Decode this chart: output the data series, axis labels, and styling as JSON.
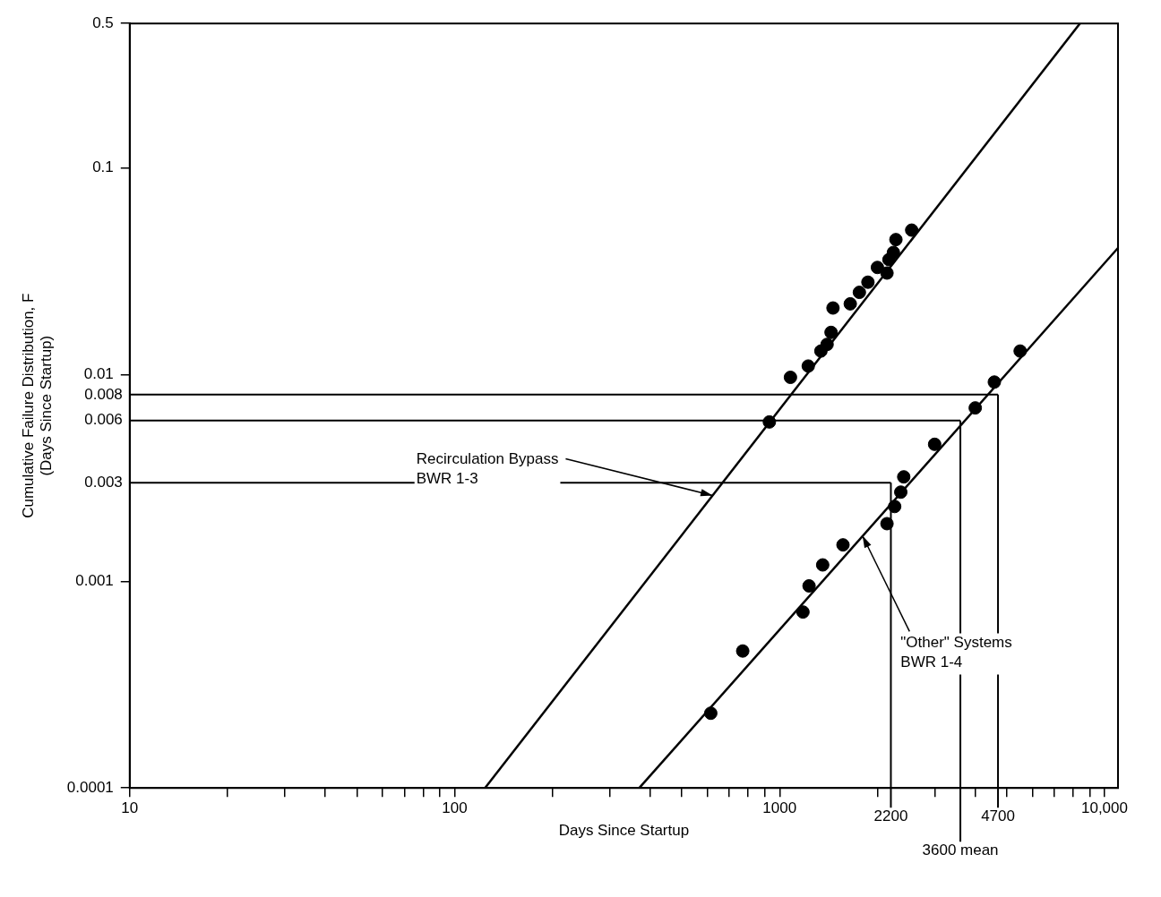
{
  "chart_data": {
    "type": "scatter",
    "xlabel": "Days Since Startup",
    "ylabel": "Cumulative Failure Distribution, F\n(Days Since Startup)",
    "log": "xy",
    "grid": false,
    "legend": false,
    "marker": "circle",
    "xlim": [
      10,
      11000
    ],
    "ylim": [
      0.0001,
      0.5
    ],
    "xticks": [
      10,
      {
        "value": 20,
        "label": null
      },
      {
        "value": 30,
        "label": null
      },
      {
        "value": 40,
        "label": null
      },
      {
        "value": 50,
        "label": null
      },
      {
        "value": 60,
        "label": null
      },
      {
        "value": 70,
        "label": null
      },
      {
        "value": 80,
        "label": null
      },
      {
        "value": 90,
        "label": null
      },
      100,
      {
        "value": 200,
        "label": null
      },
      {
        "value": 300,
        "label": null
      },
      {
        "value": 400,
        "label": null
      },
      {
        "value": 500,
        "label": null
      },
      {
        "value": 600,
        "label": null
      },
      {
        "value": 700,
        "label": null
      },
      {
        "value": 800,
        "label": null
      },
      {
        "value": 900,
        "label": null
      },
      1000,
      {
        "value": 2000,
        "label": null
      },
      {
        "value": 3000,
        "label": null
      },
      {
        "value": 4000,
        "label": null
      },
      {
        "value": 5000,
        "label": null
      },
      {
        "value": 6000,
        "label": null
      },
      {
        "value": 7000,
        "label": null
      },
      {
        "value": 8000,
        "label": null
      },
      {
        "value": 9000,
        "label": null
      },
      {
        "value": 10000,
        "label": "10,000"
      }
    ],
    "yticks": [
      0.0001,
      0.001,
      0.01,
      0.1,
      0.5
    ],
    "series": [
      {
        "color": "#000000",
        "x": [
          930,
          1080,
          1225,
          1340,
          1400,
          1440,
          1460,
          1650,
          1760,
          1870,
          2000,
          2140,
          2170,
          2240,
          2280,
          2550
        ],
        "values": [
          0.0059,
          0.0097,
          0.011,
          0.013,
          0.014,
          0.016,
          0.021,
          0.022,
          0.025,
          0.028,
          0.033,
          0.031,
          0.036,
          0.039,
          0.045,
          0.05
        ]
      },
      {
        "color": "#000000",
        "x": [
          614,
          770,
          1180,
          1232,
          1357,
          1567,
          2140,
          2260,
          2360,
          2410,
          3000,
          4000,
          4580,
          5500
        ],
        "values": [
          0.00023,
          0.00046,
          0.00071,
          0.00095,
          0.0012,
          0.0015,
          0.0019,
          0.0023,
          0.0027,
          0.0032,
          0.0046,
          0.0069,
          0.0092,
          0.013
        ]
      },
      {
        "type": "line",
        "color": "#000000",
        "marker": "none",
        "x": [
          124,
          8400
        ],
        "values": [
          0.0001,
          0.5
        ]
      },
      {
        "type": "line",
        "color": "#000000",
        "marker": "none",
        "x": [
          370,
          11000
        ],
        "values": [
          0.0001,
          0.041
        ]
      }
    ],
    "ref_lines": [
      {
        "axis": "y",
        "value": 0.003,
        "label": "0.003"
      },
      {
        "axis": "y",
        "value": 0.006,
        "label": "0.006"
      },
      {
        "axis": "y",
        "value": 0.008,
        "label": "0.008"
      },
      {
        "axis": "x",
        "value": 2200,
        "label": "2200"
      },
      {
        "axis": "x",
        "value": 3600,
        "label": "3600 mean"
      },
      {
        "axis": "x",
        "value": 4700,
        "label": "4700"
      }
    ],
    "annotations": [
      {
        "text": "Recirculation Bypass\nBWR 1-3",
        "x": 622,
        "y": 0.0026
      },
      {
        "text": "\"Other\" Systems\nBWR 1-4",
        "x": 1800,
        "y": 0.00166
      }
    ]
  }
}
